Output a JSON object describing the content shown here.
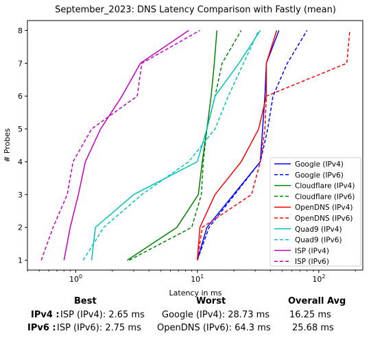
{
  "chart_data": {
    "type": "line",
    "title": "September_2023: DNS Latency Comparison with Fastly (mean)",
    "xlabel": "Latency in ms",
    "ylabel": "# Probes",
    "xscale": "log",
    "xlim": [
      0.4,
      230
    ],
    "ylim": [
      0.7,
      8.3
    ],
    "x_tick_labels": [
      "10^0",
      "10^1",
      "10^2"
    ],
    "x_tick_values": [
      1,
      10,
      100
    ],
    "y_ticks": [
      1,
      2,
      3,
      4,
      5,
      6,
      7,
      8
    ],
    "grid": false,
    "legend_position": "lower-right",
    "series": [
      {
        "name": "Google (IPv4)",
        "color": "#0000ff",
        "dash": "solid",
        "x": [
          10.0,
          12.0,
          33.0,
          36.0,
          37.0,
          47.0
        ],
        "y": [
          1,
          2,
          4,
          6,
          7,
          8
        ]
      },
      {
        "name": "Google (IPv6)",
        "color": "#0000ff",
        "dash": "dashed",
        "x": [
          10.0,
          12.5,
          33.0,
          38.0,
          42.0,
          55.0,
          80.0
        ],
        "y": [
          1,
          2,
          4,
          5,
          6,
          7,
          8
        ]
      },
      {
        "name": "Cloudflare (IPv4)",
        "color": "#008000",
        "dash": "solid",
        "x": [
          2.65,
          6.8,
          10.2,
          11.0,
          12.0,
          13.0,
          13.8,
          14.5
        ],
        "y": [
          1,
          2,
          3,
          4,
          5,
          6,
          7,
          8
        ]
      },
      {
        "name": "Cloudflare (IPv6)",
        "color": "#008000",
        "dash": "dashed",
        "x": [
          2.75,
          9.0,
          10.8,
          11.2,
          12.0,
          14.0,
          16.0,
          23.0
        ],
        "y": [
          1,
          2,
          3,
          4,
          5,
          6,
          7,
          8
        ]
      },
      {
        "name": "OpenDNS (IPv4)",
        "color": "#ff0000",
        "dash": "solid",
        "x": [
          10.0,
          10.5,
          14.0,
          23.0,
          32.0,
          37.0,
          37.0,
          45.0
        ],
        "y": [
          1,
          2,
          3,
          4,
          5,
          6,
          7,
          8
        ]
      },
      {
        "name": "OpenDNS (IPv6)",
        "color": "#ff0000",
        "dash": "dashed",
        "x": [
          10.0,
          11.0,
          28.0,
          33.0,
          36.0,
          37.0,
          170.0,
          180.0
        ],
        "y": [
          1,
          2,
          3,
          4,
          5,
          6,
          7,
          8
        ]
      },
      {
        "name": "Quad9 (IPv4)",
        "color": "#00bfbf",
        "dash": "solid",
        "x": [
          1.35,
          1.45,
          3.0,
          10.0,
          12.0,
          14.0,
          22.0,
          33.0
        ],
        "y": [
          1,
          2,
          3,
          4,
          5,
          6,
          7,
          8
        ]
      },
      {
        "name": "Quad9 (IPv6)",
        "color": "#00bfbf",
        "dash": "dashed",
        "x": [
          1.15,
          1.7,
          3.5,
          8.5,
          14.0,
          18.0,
          24.0,
          32.0
        ],
        "y": [
          1,
          2,
          3,
          4,
          5,
          6,
          7,
          8
        ]
      },
      {
        "name": "ISP (IPv4)",
        "color": "#bf00bf",
        "dash": "solid",
        "x": [
          0.8,
          0.9,
          1.05,
          1.2,
          1.6,
          2.4,
          3.4,
          8.5
        ],
        "y": [
          1,
          2,
          3,
          4,
          5,
          6,
          7,
          8
        ]
      },
      {
        "name": "ISP (IPv6)",
        "color": "#bf00bf",
        "dash": "dashed",
        "x": [
          0.52,
          0.65,
          0.85,
          0.95,
          1.35,
          3.2,
          3.5,
          10.5
        ],
        "y": [
          1,
          2,
          3,
          4,
          5,
          6,
          7,
          8
        ]
      }
    ]
  },
  "summary": {
    "headers": {
      "best": "Best",
      "worst": "Worst",
      "overall": "Overall Avg"
    },
    "rows": [
      {
        "label": "IPv4 :",
        "best": "ISP (IPv4): 2.65 ms",
        "worst": "Google (IPv4): 28.73 ms",
        "overall": "16.25 ms"
      },
      {
        "label": "IPv6 :",
        "best": "ISP (IPv6): 2.75 ms",
        "worst": "OpenDNS (IPv6): 64.3 ms",
        "overall": "25.68 ms"
      }
    ]
  }
}
